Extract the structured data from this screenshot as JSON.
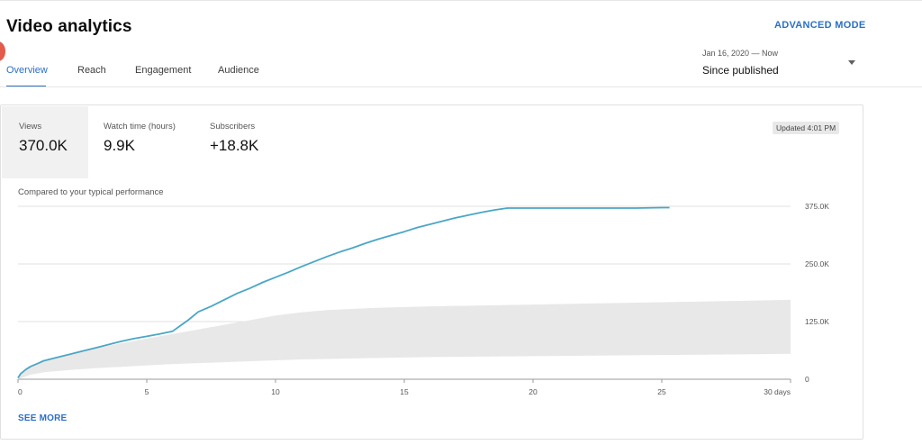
{
  "header": {
    "title": "Video analytics",
    "advanced_mode": "ADVANCED MODE"
  },
  "tabs": [
    {
      "label": "Overview",
      "active": true
    },
    {
      "label": "Reach",
      "active": false
    },
    {
      "label": "Engagement",
      "active": false
    },
    {
      "label": "Audience",
      "active": false
    }
  ],
  "date_range": {
    "dates": "Jan 16, 2020 — Now",
    "label": "Since published"
  },
  "metrics": [
    {
      "label": "Views",
      "value": "370.0K",
      "selected": true
    },
    {
      "label": "Watch time (hours)",
      "value": "9.9K",
      "selected": false
    },
    {
      "label": "Subscribers",
      "value": "+18.8K",
      "selected": false
    }
  ],
  "updated": "Updated 4:01 PM",
  "chart": {
    "caption": "Compared to your typical performance",
    "see_more": "SEE MORE"
  },
  "colors": {
    "accent": "#2d6fc4",
    "line": "#4aa6c6",
    "band": "#e8e8e8"
  },
  "chart_data": {
    "type": "line",
    "x_tick_labels": [
      "0",
      "5",
      "10",
      "15",
      "20",
      "25",
      "30 days"
    ],
    "x_ticks": [
      0,
      5,
      10,
      15,
      20,
      25,
      30
    ],
    "y_tick_labels": [
      "0",
      "125.0K",
      "250.0K",
      "375.0K"
    ],
    "y_ticks": [
      0,
      125000,
      250000,
      375000
    ],
    "xlim": [
      0,
      30
    ],
    "ylim": [
      0,
      375000
    ],
    "grid": true,
    "series": [
      {
        "x": [
          0,
          0.1,
          0.3,
          0.5,
          0.8,
          1,
          1.5,
          2,
          2.5,
          3,
          3.5,
          4,
          4.5,
          5,
          5.5,
          6,
          6.3,
          6.6,
          7,
          7.5,
          8,
          8.5,
          9,
          9.5,
          10,
          10.5,
          11,
          11.5,
          12,
          12.5,
          13,
          13.5,
          14,
          14.5,
          15,
          15.5,
          16,
          16.5,
          17,
          17.5,
          18,
          18.5,
          19,
          19.5,
          20,
          21,
          22,
          23,
          24,
          25,
          25.3
        ],
        "y": [
          3000,
          12000,
          21000,
          28000,
          35000,
          40000,
          47000,
          54000,
          61000,
          68000,
          75000,
          82000,
          88000,
          93000,
          98000,
          104000,
          116000,
          128000,
          146000,
          158000,
          172000,
          186000,
          197000,
          210000,
          221000,
          232000,
          244000,
          255000,
          266000,
          276000,
          285000,
          295000,
          304000,
          312000,
          320000,
          329000,
          336000,
          343000,
          350000,
          356000,
          362000,
          367000,
          371000,
          371000,
          371000,
          371000,
          371000,
          371000,
          371000,
          372000,
          372000
        ]
      }
    ],
    "typical_band": {
      "x": [
        0,
        0.5,
        1,
        2,
        3,
        4,
        5,
        6,
        7,
        8,
        9,
        10,
        11,
        12,
        14,
        16,
        18,
        20,
        22,
        24,
        26,
        28,
        30
      ],
      "upper": [
        6000,
        28000,
        40000,
        55000,
        67000,
        78000,
        88000,
        98000,
        108000,
        118000,
        128000,
        138000,
        145000,
        150000,
        155000,
        158000,
        160000,
        162000,
        164000,
        166000,
        168000,
        170000,
        172000
      ],
      "lower": [
        0,
        10000,
        15000,
        20000,
        24000,
        27000,
        30000,
        33000,
        35000,
        37000,
        39000,
        41000,
        43000,
        44000,
        46000,
        48000,
        49000,
        50000,
        51000,
        52000,
        53000,
        54000,
        55000
      ]
    }
  }
}
